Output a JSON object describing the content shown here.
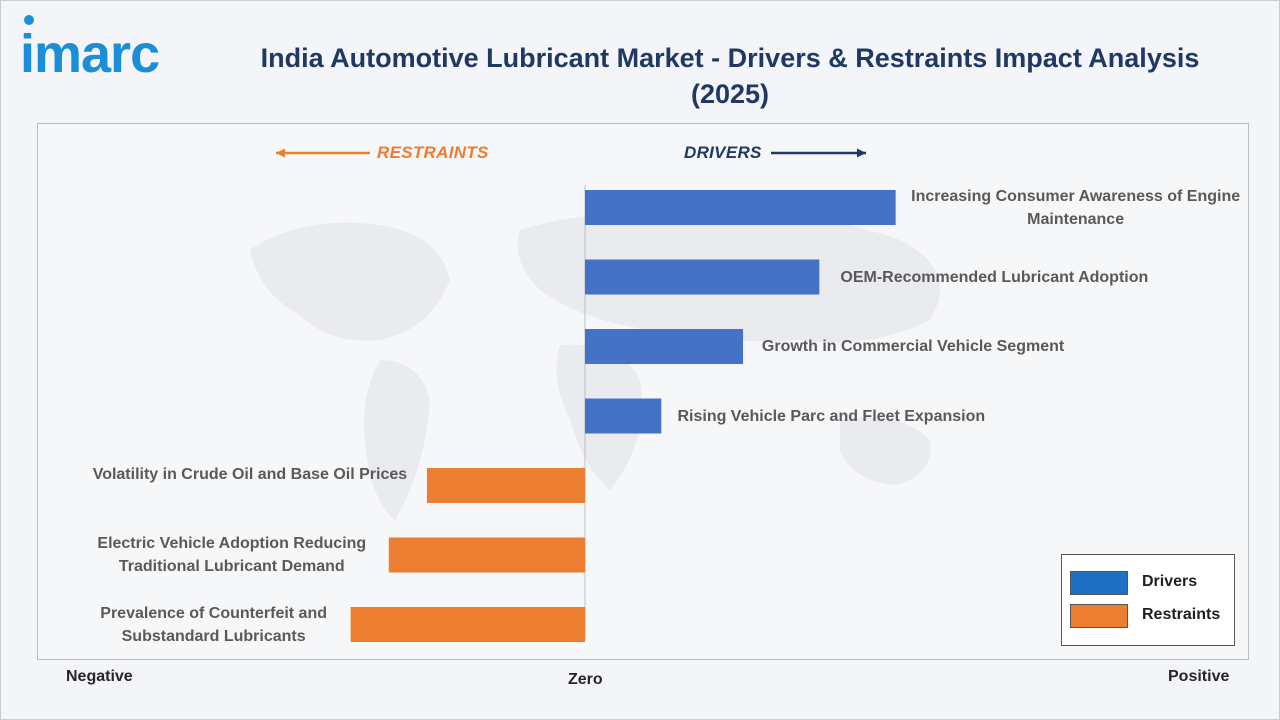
{
  "brand": {
    "logo_text": "imarc",
    "accent": "#1a8fd8"
  },
  "chart_data": {
    "type": "bar",
    "orientation": "horizontal",
    "title": "India Automotive Lubricant Market - Drivers & Restraints Impact Analysis (2025)",
    "direction_labels": {
      "restraints": "RESTRAINTS",
      "drivers": "DRIVERS"
    },
    "axis_labels": {
      "negative": "Negative",
      "zero": "Zero",
      "positive": "Positive"
    },
    "xlim": [
      -1.0,
      1.0
    ],
    "categories": [
      "Increasing Consumer Awareness of Engine Maintenance",
      "OEM-Recommended Lubricant Adoption",
      "Growth in Commercial Vehicle Segment",
      "Rising Vehicle Parc and Fleet Expansion",
      "Volatility in Crude Oil and Base Oil Prices",
      "Electric Vehicle Adoption Reducing Traditional Lubricant Demand",
      "Prevalence of Counterfeit and Substandard Lubricants"
    ],
    "series": [
      {
        "name": "Drivers",
        "color": "#4472c4",
        "values": [
          0.57,
          0.43,
          0.29,
          0.14,
          null,
          null,
          null
        ]
      },
      {
        "name": "Restraints",
        "color": "#ed7d31",
        "values": [
          null,
          null,
          null,
          null,
          -0.29,
          -0.36,
          -0.43
        ]
      }
    ],
    "legend": {
      "position": "bottom-right",
      "items": [
        "Drivers",
        "Restraints"
      ],
      "colors": [
        "#1f6fc5",
        "#ed7d31"
      ]
    },
    "grid": false
  }
}
